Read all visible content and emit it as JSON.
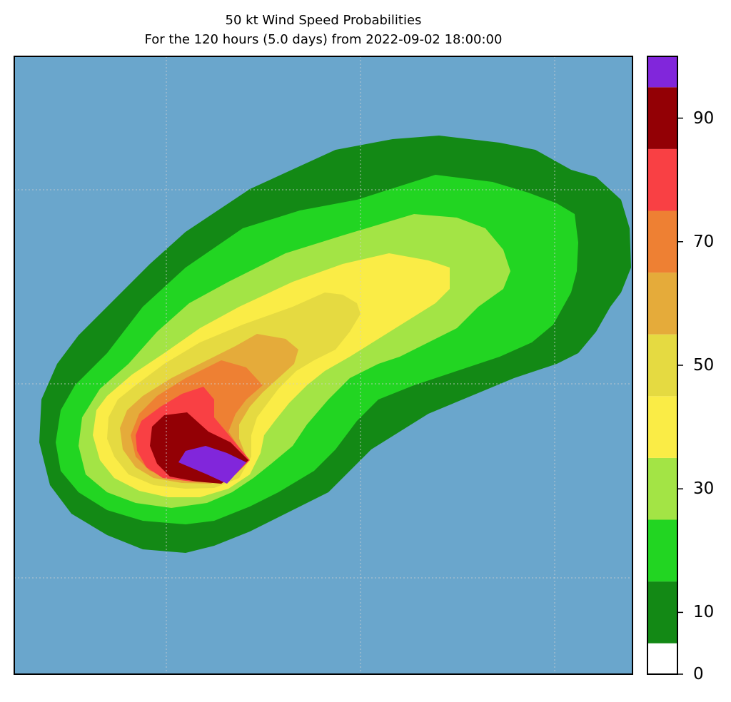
{
  "title": "50 kt Wind Speed Probabilities",
  "subtitle": "For the 120 hours (5.0 days) from 2022-09-02 18:00:00",
  "colors": {
    "ocean": "#6aa6cc",
    "grid": "#d0d0d0",
    "levels": [
      "#ffffff",
      "#138915",
      "#22d522",
      "#a3e445",
      "#faec46",
      "#e5da41",
      "#e5ab3a",
      "#ee8033",
      "#f94044",
      "#930005",
      "#8126db"
    ]
  },
  "colorbar": {
    "min": 0,
    "max": 100,
    "boundaries": [
      0,
      5,
      15,
      25,
      35,
      45,
      55,
      65,
      75,
      85,
      95,
      100
    ],
    "tick_labels": [
      "0",
      "10",
      "30",
      "50",
      "70",
      "90"
    ],
    "tick_values": [
      0,
      10,
      30,
      50,
      70,
      90
    ]
  }
}
